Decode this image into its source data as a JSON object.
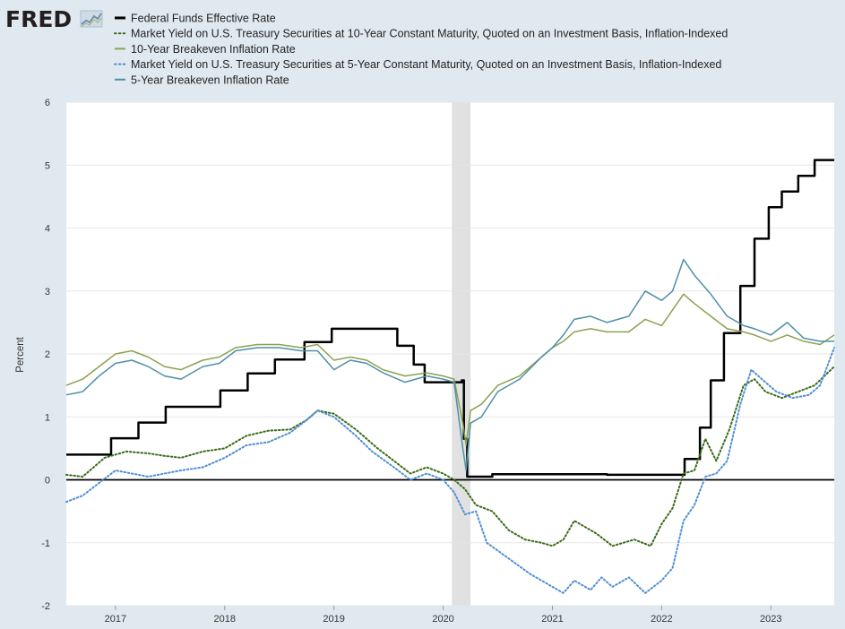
{
  "logo": {
    "text": "FRED"
  },
  "chart_data": {
    "type": "line",
    "title": "",
    "xlabel": "",
    "ylabel": "Percent",
    "ylim": [
      -2,
      6
    ],
    "yticks": [
      -2,
      -1,
      0,
      1,
      2,
      3,
      4,
      5,
      6
    ],
    "xlim": [
      2016.55,
      2023.58
    ],
    "xticks": [
      2017,
      2018,
      2019,
      2020,
      2021,
      2022,
      2023
    ],
    "grid": true,
    "legend": "top",
    "recession": {
      "start": 2020.08,
      "end": 2020.25,
      "color": "#e1e1e1"
    },
    "zero_line": 0,
    "series": [
      {
        "name": "Federal Funds Effective Rate",
        "color": "#000000",
        "style": "solid",
        "width": 2.5,
        "step": true,
        "points": [
          [
            2016.55,
            0.4
          ],
          [
            2016.96,
            0.66
          ],
          [
            2017.21,
            0.91
          ],
          [
            2017.46,
            1.16
          ],
          [
            2017.96,
            1.42
          ],
          [
            2018.21,
            1.69
          ],
          [
            2018.46,
            1.91
          ],
          [
            2018.73,
            2.19
          ],
          [
            2018.98,
            2.4
          ],
          [
            2019.58,
            2.13
          ],
          [
            2019.73,
            1.83
          ],
          [
            2019.83,
            1.55
          ],
          [
            2020.17,
            1.58
          ],
          [
            2020.19,
            0.65
          ],
          [
            2020.22,
            0.05
          ],
          [
            2020.3,
            0.05
          ],
          [
            2020.45,
            0.09
          ],
          [
            2021.0,
            0.09
          ],
          [
            2021.5,
            0.08
          ],
          [
            2022.0,
            0.08
          ],
          [
            2022.21,
            0.33
          ],
          [
            2022.35,
            0.83
          ],
          [
            2022.45,
            1.58
          ],
          [
            2022.57,
            2.33
          ],
          [
            2022.72,
            3.08
          ],
          [
            2022.85,
            3.83
          ],
          [
            2022.98,
            4.33
          ],
          [
            2023.1,
            4.58
          ],
          [
            2023.25,
            4.83
          ],
          [
            2023.4,
            5.08
          ],
          [
            2023.58,
            5.08
          ]
        ]
      },
      {
        "name": "Market Yield on U.S. Treasury Securities at 10-Year Constant Maturity, Quoted on an Investment Basis, Inflation-Indexed",
        "color": "#3a6b18",
        "style": "dotted",
        "width": 2,
        "points": [
          [
            2016.55,
            0.08
          ],
          [
            2016.7,
            0.05
          ],
          [
            2016.9,
            0.35
          ],
          [
            2017.1,
            0.45
          ],
          [
            2017.3,
            0.42
          ],
          [
            2017.45,
            0.38
          ],
          [
            2017.6,
            0.35
          ],
          [
            2017.8,
            0.45
          ],
          [
            2018.0,
            0.5
          ],
          [
            2018.2,
            0.7
          ],
          [
            2018.4,
            0.78
          ],
          [
            2018.6,
            0.8
          ],
          [
            2018.75,
            0.95
          ],
          [
            2018.85,
            1.1
          ],
          [
            2019.0,
            1.05
          ],
          [
            2019.2,
            0.8
          ],
          [
            2019.4,
            0.5
          ],
          [
            2019.55,
            0.3
          ],
          [
            2019.7,
            0.1
          ],
          [
            2019.85,
            0.2
          ],
          [
            2020.0,
            0.1
          ],
          [
            2020.1,
            0.0
          ],
          [
            2020.2,
            -0.15
          ],
          [
            2020.3,
            -0.4
          ],
          [
            2020.45,
            -0.5
          ],
          [
            2020.6,
            -0.8
          ],
          [
            2020.75,
            -0.95
          ],
          [
            2020.9,
            -1.0
          ],
          [
            2021.0,
            -1.05
          ],
          [
            2021.1,
            -0.95
          ],
          [
            2021.2,
            -0.65
          ],
          [
            2021.4,
            -0.85
          ],
          [
            2021.55,
            -1.05
          ],
          [
            2021.75,
            -0.95
          ],
          [
            2021.9,
            -1.05
          ],
          [
            2022.0,
            -0.7
          ],
          [
            2022.1,
            -0.45
          ],
          [
            2022.2,
            0.1
          ],
          [
            2022.3,
            0.15
          ],
          [
            2022.4,
            0.65
          ],
          [
            2022.5,
            0.3
          ],
          [
            2022.62,
            0.8
          ],
          [
            2022.75,
            1.5
          ],
          [
            2022.85,
            1.6
          ],
          [
            2022.95,
            1.4
          ],
          [
            2023.1,
            1.3
          ],
          [
            2023.25,
            1.4
          ],
          [
            2023.4,
            1.5
          ],
          [
            2023.58,
            1.8
          ]
        ]
      },
      {
        "name": "10-Year Breakeven Inflation Rate",
        "color": "#8ca150",
        "style": "solid",
        "width": 1.5,
        "points": [
          [
            2016.55,
            1.5
          ],
          [
            2016.7,
            1.6
          ],
          [
            2016.85,
            1.8
          ],
          [
            2017.0,
            2.0
          ],
          [
            2017.15,
            2.05
          ],
          [
            2017.3,
            1.95
          ],
          [
            2017.45,
            1.8
          ],
          [
            2017.6,
            1.75
          ],
          [
            2017.8,
            1.9
          ],
          [
            2017.95,
            1.95
          ],
          [
            2018.1,
            2.1
          ],
          [
            2018.3,
            2.15
          ],
          [
            2018.5,
            2.15
          ],
          [
            2018.7,
            2.1
          ],
          [
            2018.85,
            2.15
          ],
          [
            2019.0,
            1.9
          ],
          [
            2019.15,
            1.95
          ],
          [
            2019.3,
            1.9
          ],
          [
            2019.45,
            1.75
          ],
          [
            2019.65,
            1.65
          ],
          [
            2019.85,
            1.7
          ],
          [
            2020.0,
            1.65
          ],
          [
            2020.1,
            1.6
          ],
          [
            2020.18,
            0.9
          ],
          [
            2020.21,
            0.55
          ],
          [
            2020.25,
            1.1
          ],
          [
            2020.35,
            1.2
          ],
          [
            2020.5,
            1.5
          ],
          [
            2020.7,
            1.65
          ],
          [
            2020.9,
            1.95
          ],
          [
            2021.0,
            2.1
          ],
          [
            2021.1,
            2.2
          ],
          [
            2021.2,
            2.35
          ],
          [
            2021.35,
            2.4
          ],
          [
            2021.5,
            2.35
          ],
          [
            2021.7,
            2.35
          ],
          [
            2021.85,
            2.55
          ],
          [
            2022.0,
            2.45
          ],
          [
            2022.1,
            2.7
          ],
          [
            2022.2,
            2.95
          ],
          [
            2022.3,
            2.8
          ],
          [
            2022.45,
            2.6
          ],
          [
            2022.6,
            2.4
          ],
          [
            2022.75,
            2.35
          ],
          [
            2022.85,
            2.3
          ],
          [
            2023.0,
            2.2
          ],
          [
            2023.15,
            2.3
          ],
          [
            2023.3,
            2.2
          ],
          [
            2023.45,
            2.15
          ],
          [
            2023.58,
            2.3
          ]
        ]
      },
      {
        "name": "Market Yield on U.S. Treasury Securities at 5-Year Constant Maturity, Quoted on an Investment Basis, Inflation-Indexed",
        "color": "#4f8fd4",
        "style": "dotted",
        "width": 2,
        "points": [
          [
            2016.55,
            -0.35
          ],
          [
            2016.7,
            -0.25
          ],
          [
            2016.85,
            -0.05
          ],
          [
            2017.0,
            0.15
          ],
          [
            2017.15,
            0.1
          ],
          [
            2017.3,
            0.05
          ],
          [
            2017.45,
            0.1
          ],
          [
            2017.6,
            0.15
          ],
          [
            2017.8,
            0.2
          ],
          [
            2018.0,
            0.35
          ],
          [
            2018.2,
            0.55
          ],
          [
            2018.4,
            0.6
          ],
          [
            2018.6,
            0.75
          ],
          [
            2018.75,
            0.95
          ],
          [
            2018.85,
            1.1
          ],
          [
            2019.0,
            1.0
          ],
          [
            2019.2,
            0.7
          ],
          [
            2019.35,
            0.45
          ],
          [
            2019.55,
            0.2
          ],
          [
            2019.7,
            0.0
          ],
          [
            2019.85,
            0.1
          ],
          [
            2020.0,
            0.0
          ],
          [
            2020.1,
            -0.2
          ],
          [
            2020.2,
            -0.55
          ],
          [
            2020.3,
            -0.5
          ],
          [
            2020.4,
            -1.0
          ],
          [
            2020.6,
            -1.25
          ],
          [
            2020.8,
            -1.5
          ],
          [
            2020.95,
            -1.65
          ],
          [
            2021.1,
            -1.8
          ],
          [
            2021.2,
            -1.6
          ],
          [
            2021.35,
            -1.75
          ],
          [
            2021.45,
            -1.55
          ],
          [
            2021.55,
            -1.7
          ],
          [
            2021.7,
            -1.55
          ],
          [
            2021.85,
            -1.8
          ],
          [
            2022.0,
            -1.6
          ],
          [
            2022.1,
            -1.4
          ],
          [
            2022.2,
            -0.65
          ],
          [
            2022.3,
            -0.4
          ],
          [
            2022.4,
            0.05
          ],
          [
            2022.5,
            0.1
          ],
          [
            2022.6,
            0.3
          ],
          [
            2022.72,
            1.2
          ],
          [
            2022.82,
            1.75
          ],
          [
            2022.95,
            1.55
          ],
          [
            2023.05,
            1.4
          ],
          [
            2023.2,
            1.3
          ],
          [
            2023.35,
            1.35
          ],
          [
            2023.45,
            1.5
          ],
          [
            2023.58,
            2.1
          ]
        ]
      },
      {
        "name": "5-Year Breakeven Inflation Rate",
        "color": "#4f8fa6",
        "style": "solid",
        "width": 1.5,
        "points": [
          [
            2016.55,
            1.35
          ],
          [
            2016.7,
            1.4
          ],
          [
            2016.85,
            1.65
          ],
          [
            2017.0,
            1.85
          ],
          [
            2017.15,
            1.9
          ],
          [
            2017.3,
            1.8
          ],
          [
            2017.45,
            1.65
          ],
          [
            2017.6,
            1.6
          ],
          [
            2017.8,
            1.8
          ],
          [
            2017.95,
            1.85
          ],
          [
            2018.1,
            2.05
          ],
          [
            2018.3,
            2.1
          ],
          [
            2018.5,
            2.1
          ],
          [
            2018.7,
            2.05
          ],
          [
            2018.85,
            2.05
          ],
          [
            2019.0,
            1.75
          ],
          [
            2019.15,
            1.9
          ],
          [
            2019.3,
            1.85
          ],
          [
            2019.45,
            1.7
          ],
          [
            2019.65,
            1.55
          ],
          [
            2019.85,
            1.65
          ],
          [
            2020.0,
            1.6
          ],
          [
            2020.1,
            1.55
          ],
          [
            2020.18,
            0.5
          ],
          [
            2020.21,
            0.15
          ],
          [
            2020.25,
            0.9
          ],
          [
            2020.35,
            1.0
          ],
          [
            2020.5,
            1.4
          ],
          [
            2020.7,
            1.6
          ],
          [
            2020.9,
            1.95
          ],
          [
            2021.0,
            2.1
          ],
          [
            2021.1,
            2.3
          ],
          [
            2021.2,
            2.55
          ],
          [
            2021.35,
            2.6
          ],
          [
            2021.5,
            2.5
          ],
          [
            2021.7,
            2.6
          ],
          [
            2021.85,
            3.0
          ],
          [
            2022.0,
            2.85
          ],
          [
            2022.1,
            3.0
          ],
          [
            2022.2,
            3.5
          ],
          [
            2022.3,
            3.25
          ],
          [
            2022.45,
            2.95
          ],
          [
            2022.6,
            2.6
          ],
          [
            2022.75,
            2.45
          ],
          [
            2022.85,
            2.4
          ],
          [
            2023.0,
            2.3
          ],
          [
            2023.15,
            2.5
          ],
          [
            2023.3,
            2.25
          ],
          [
            2023.45,
            2.2
          ],
          [
            2023.58,
            2.2
          ]
        ]
      }
    ]
  }
}
